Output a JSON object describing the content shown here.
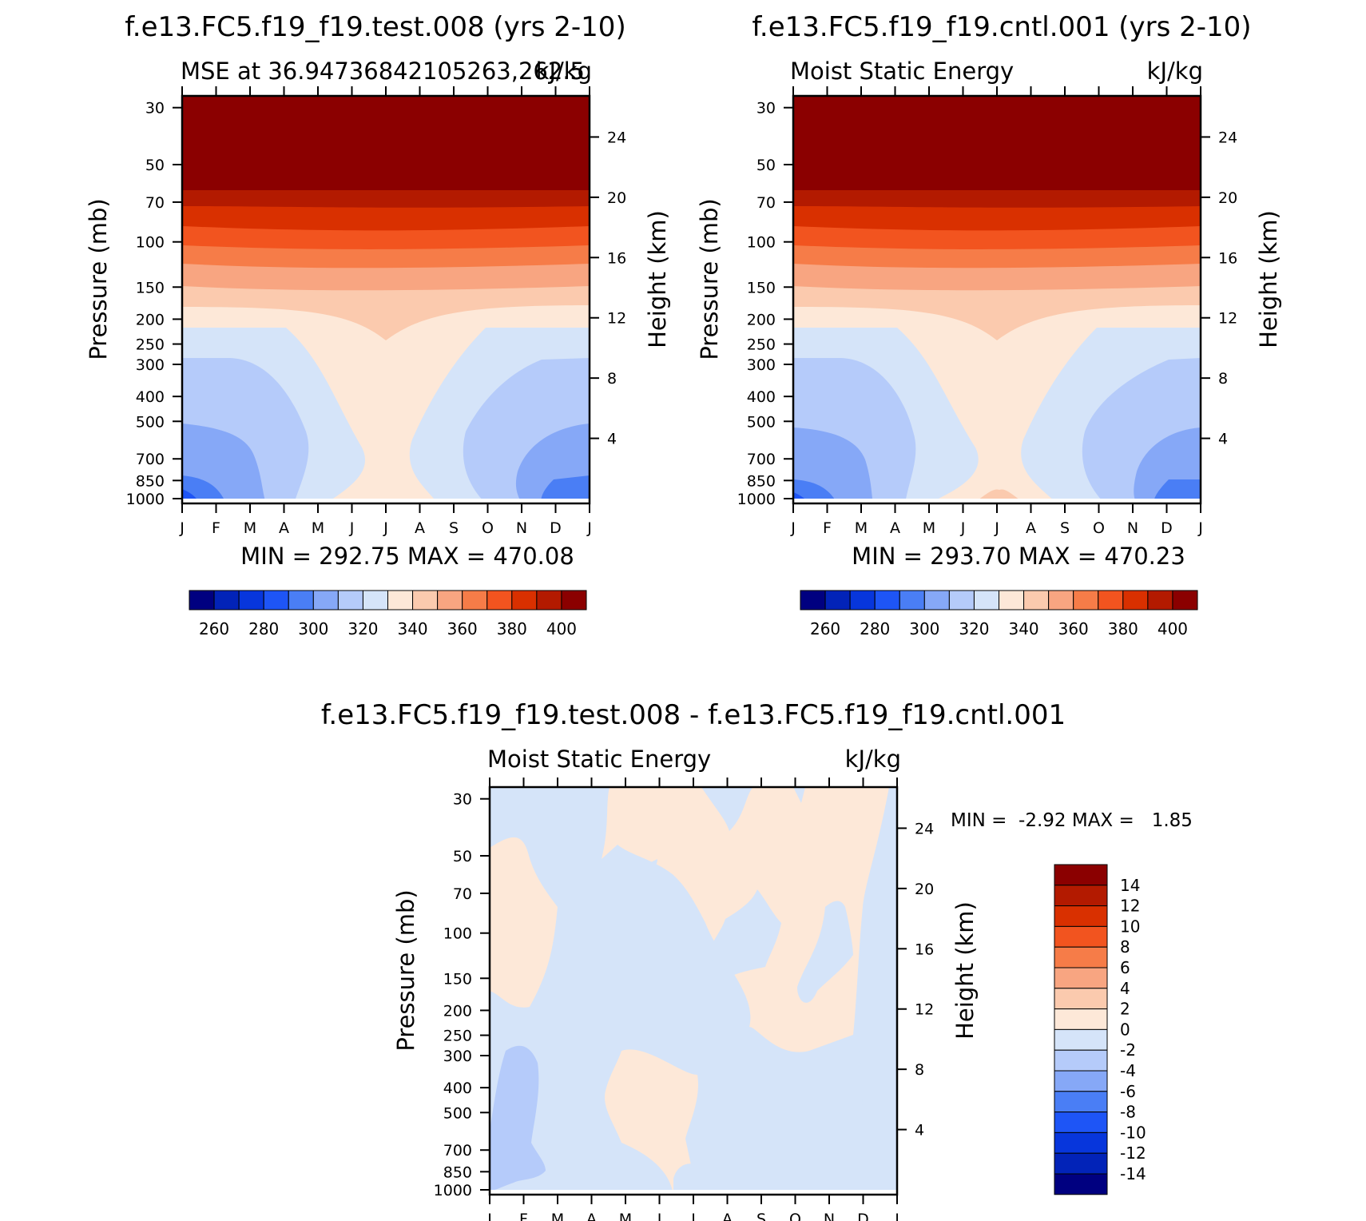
{
  "titles": {
    "panel1": "f.e13.FC5.f19_f19.test.008 (yrs 2-10)",
    "panel2": "f.e13.FC5.f19_f19.cntl.001 (yrs 2-10)",
    "panel3": "f.e13.FC5.f19_f19.test.008 - f.e13.FC5.f19_f19.cntl.001"
  },
  "subtitles": {
    "panel1_left": "MSE at 36.94736842105263,262.5",
    "panel1_right": "kJ/kg",
    "panel2_left": "Moist Static Energy",
    "panel2_right": "kJ/kg",
    "panel3_left": "Moist Static Energy",
    "panel3_right": "kJ/kg"
  },
  "axes": {
    "y_left_label": "Pressure (mb)",
    "y_right_label": "Height (km)",
    "pressure_ticks": [
      "30",
      "50",
      "70",
      "100",
      "150",
      "200",
      "250",
      "300",
      "400",
      "500",
      "700",
      "850",
      "1000"
    ],
    "height_ticks": [
      "24",
      "20",
      "16",
      "12",
      "8",
      "4"
    ],
    "month_ticks": [
      "J",
      "F",
      "M",
      "A",
      "M",
      "J",
      "J",
      "A",
      "S",
      "O",
      "N",
      "D",
      "J"
    ]
  },
  "stats": {
    "panel1": "MIN = 292.75 MAX = 470.08",
    "panel2": "MIN = 293.70 MAX = 470.23",
    "panel3": "MIN =  -2.92 MAX =   1.85"
  },
  "colorbars": {
    "abs_labels": [
      "260",
      "280",
      "300",
      "320",
      "340",
      "360",
      "380",
      "400"
    ],
    "diff_labels": [
      "14",
      "12",
      "10",
      "8",
      "6",
      "4",
      "2",
      "0",
      "-2",
      "-4",
      "-6",
      "-8",
      "-10",
      "-12",
      "-14"
    ],
    "colors": [
      "#000080",
      "#0223b8",
      "#0736dc",
      "#1e55f6",
      "#4a7ef5",
      "#86a8f7",
      "#b5cbfa",
      "#d5e4f9",
      "#fde8d8",
      "#fbcaae",
      "#f8a581",
      "#f67c48",
      "#f2541f",
      "#d93000",
      "#b31a00",
      "#8b0000"
    ]
  },
  "chart_data": [
    {
      "type": "heatmap",
      "title": "f.e13.FC5.f19_f19.test.008 (yrs 2-10)",
      "variable": "MSE at 36.94736842105263,262.5",
      "units": "kJ/kg",
      "x": [
        "J",
        "F",
        "M",
        "A",
        "M",
        "J",
        "J",
        "A",
        "S",
        "O",
        "N",
        "D",
        "J"
      ],
      "y": [
        1000,
        850,
        700,
        500,
        400,
        300,
        250,
        200,
        150,
        100,
        70,
        50,
        30
      ],
      "z": [
        [
          300,
          302,
          305,
          312,
          323,
          334,
          337,
          334,
          323,
          312,
          305,
          302,
          300
        ],
        [
          304,
          306,
          309,
          316,
          326,
          334,
          337,
          334,
          326,
          316,
          309,
          306,
          304
        ],
        [
          306,
          308,
          311,
          318,
          328,
          334,
          336,
          334,
          328,
          318,
          311,
          308,
          306
        ],
        [
          310,
          312,
          315,
          320,
          328,
          334,
          335,
          334,
          328,
          320,
          315,
          312,
          310
        ],
        [
          313,
          314,
          317,
          322,
          329,
          334,
          335,
          334,
          329,
          322,
          317,
          314,
          313
        ],
        [
          316,
          317,
          319,
          323,
          330,
          335,
          336,
          335,
          330,
          323,
          319,
          317,
          316
        ],
        [
          320,
          320,
          322,
          325,
          331,
          336,
          338,
          336,
          331,
          325,
          322,
          320,
          320
        ],
        [
          325,
          326,
          328,
          330,
          334,
          337,
          339,
          337,
          334,
          330,
          328,
          326,
          325
        ],
        [
          345,
          344,
          343,
          342,
          342,
          343,
          344,
          343,
          342,
          342,
          343,
          344,
          345
        ],
        [
          370,
          368,
          367,
          366,
          366,
          366,
          366,
          366,
          366,
          366,
          367,
          368,
          370
        ],
        [
          392,
          390,
          389,
          388,
          388,
          388,
          388,
          388,
          388,
          388,
          389,
          390,
          392
        ],
        [
          430,
          428,
          426,
          425,
          425,
          425,
          425,
          425,
          425,
          425,
          426,
          428,
          430
        ],
        [
          470,
          468,
          466,
          465,
          465,
          465,
          465,
          465,
          465,
          465,
          466,
          468,
          470
        ]
      ],
      "xlabel": "",
      "ylabel": "Pressure (mb)",
      "y2label": "Height (km)",
      "min": 292.75,
      "max": 470.08,
      "levels": [
        260,
        270,
        280,
        290,
        300,
        310,
        320,
        330,
        340,
        350,
        360,
        370,
        380,
        390,
        400
      ]
    },
    {
      "type": "heatmap",
      "title": "f.e13.FC5.f19_f19.cntl.001 (yrs 2-10)",
      "variable": "Moist Static Energy",
      "units": "kJ/kg",
      "x": [
        "J",
        "F",
        "M",
        "A",
        "M",
        "J",
        "J",
        "A",
        "S",
        "O",
        "N",
        "D",
        "J"
      ],
      "y": [
        1000,
        850,
        700,
        500,
        400,
        300,
        250,
        200,
        150,
        100,
        70,
        50,
        30
      ],
      "z": [
        [
          300,
          302,
          305,
          312,
          324,
          335,
          338,
          335,
          324,
          312,
          305,
          302,
          300
        ],
        [
          304,
          306,
          309,
          316,
          327,
          335,
          337,
          335,
          327,
          316,
          309,
          306,
          304
        ],
        [
          306,
          308,
          311,
          318,
          328,
          334,
          336,
          334,
          328,
          318,
          311,
          308,
          306
        ],
        [
          310,
          312,
          315,
          320,
          328,
          334,
          335,
          334,
          328,
          320,
          315,
          312,
          310
        ],
        [
          313,
          314,
          317,
          322,
          329,
          334,
          335,
          334,
          329,
          322,
          317,
          314,
          313
        ],
        [
          316,
          317,
          319,
          323,
          330,
          335,
          336,
          335,
          330,
          323,
          319,
          317,
          316
        ],
        [
          320,
          320,
          322,
          325,
          331,
          336,
          338,
          336,
          331,
          325,
          322,
          320,
          320
        ],
        [
          325,
          326,
          328,
          330,
          334,
          337,
          339,
          337,
          334,
          330,
          328,
          326,
          325
        ],
        [
          345,
          344,
          343,
          342,
          342,
          343,
          344,
          343,
          342,
          342,
          343,
          344,
          345
        ],
        [
          370,
          368,
          367,
          366,
          366,
          366,
          366,
          366,
          366,
          366,
          367,
          368,
          370
        ],
        [
          392,
          390,
          389,
          388,
          388,
          388,
          388,
          388,
          388,
          388,
          389,
          390,
          392
        ],
        [
          430,
          428,
          426,
          425,
          425,
          425,
          425,
          425,
          425,
          425,
          426,
          428,
          430
        ],
        [
          470,
          468,
          466,
          465,
          465,
          465,
          465,
          465,
          465,
          465,
          466,
          468,
          470
        ]
      ],
      "xlabel": "",
      "ylabel": "Pressure (mb)",
      "y2label": "Height (km)",
      "min": 293.7,
      "max": 470.23,
      "levels": [
        260,
        270,
        280,
        290,
        300,
        310,
        320,
        330,
        340,
        350,
        360,
        370,
        380,
        390,
        400
      ]
    },
    {
      "type": "heatmap",
      "title": "f.e13.FC5.f19_f19.test.008 - f.e13.FC5.f19_f19.cntl.001",
      "variable": "Moist Static Energy",
      "units": "kJ/kg",
      "x": [
        "J",
        "F",
        "M",
        "A",
        "M",
        "J",
        "J",
        "A",
        "S",
        "O",
        "N",
        "D",
        "J"
      ],
      "y": [
        1000,
        850,
        700,
        500,
        400,
        300,
        250,
        200,
        150,
        100,
        70,
        50,
        30
      ],
      "z": [
        [
          -1,
          -1,
          -1,
          -1,
          -1,
          -1,
          -1,
          1,
          1,
          1,
          1,
          1,
          -1
        ],
        [
          -3,
          -2,
          -1,
          -1,
          1,
          1,
          -1,
          1,
          1,
          1,
          1,
          1,
          -1
        ],
        [
          -1,
          -3,
          -1,
          -1,
          1,
          1,
          1,
          1,
          1,
          1,
          1,
          -1,
          -1
        ],
        [
          -1,
          -3,
          -1,
          -1,
          1,
          1,
          1,
          1,
          1,
          1,
          1,
          -1,
          -1
        ],
        [
          -1,
          -3,
          -1,
          -1,
          -1,
          1,
          1,
          1,
          1,
          1,
          1,
          -1,
          -1
        ],
        [
          -1,
          -1,
          -1,
          -1,
          -1,
          -1,
          1,
          1,
          1,
          1,
          1,
          -1,
          -1
        ],
        [
          -1,
          -1,
          -1,
          -1,
          -1,
          -1,
          1,
          1,
          1,
          -1,
          1,
          -1,
          -1
        ],
        [
          1,
          1,
          -1,
          -1,
          -1,
          1,
          1,
          1,
          1,
          -1,
          1,
          1,
          -1
        ],
        [
          1,
          1,
          -1,
          -1,
          -1,
          1,
          1,
          -1,
          -1,
          1,
          1,
          1,
          -1
        ],
        [
          1,
          1,
          -1,
          -1,
          1,
          1,
          1,
          -1,
          -1,
          1,
          -1,
          1,
          -1
        ],
        [
          1,
          1,
          1,
          1,
          1,
          1,
          1,
          1,
          1,
          1,
          1,
          1,
          -1
        ],
        [
          -1,
          -1,
          -1,
          1,
          1,
          1,
          1,
          1,
          1,
          1,
          1,
          1,
          -1
        ],
        [
          -1,
          -1,
          -1,
          1,
          1,
          1,
          -1,
          1,
          1,
          1,
          1,
          1,
          -1
        ]
      ],
      "xlabel": "",
      "ylabel": "Pressure (mb)",
      "y2label": "Height (km)",
      "min": -2.92,
      "max": 1.85,
      "levels": [
        -14,
        -12,
        -10,
        -8,
        -6,
        -4,
        -2,
        0,
        2,
        4,
        6,
        8,
        10,
        12,
        14
      ]
    }
  ]
}
